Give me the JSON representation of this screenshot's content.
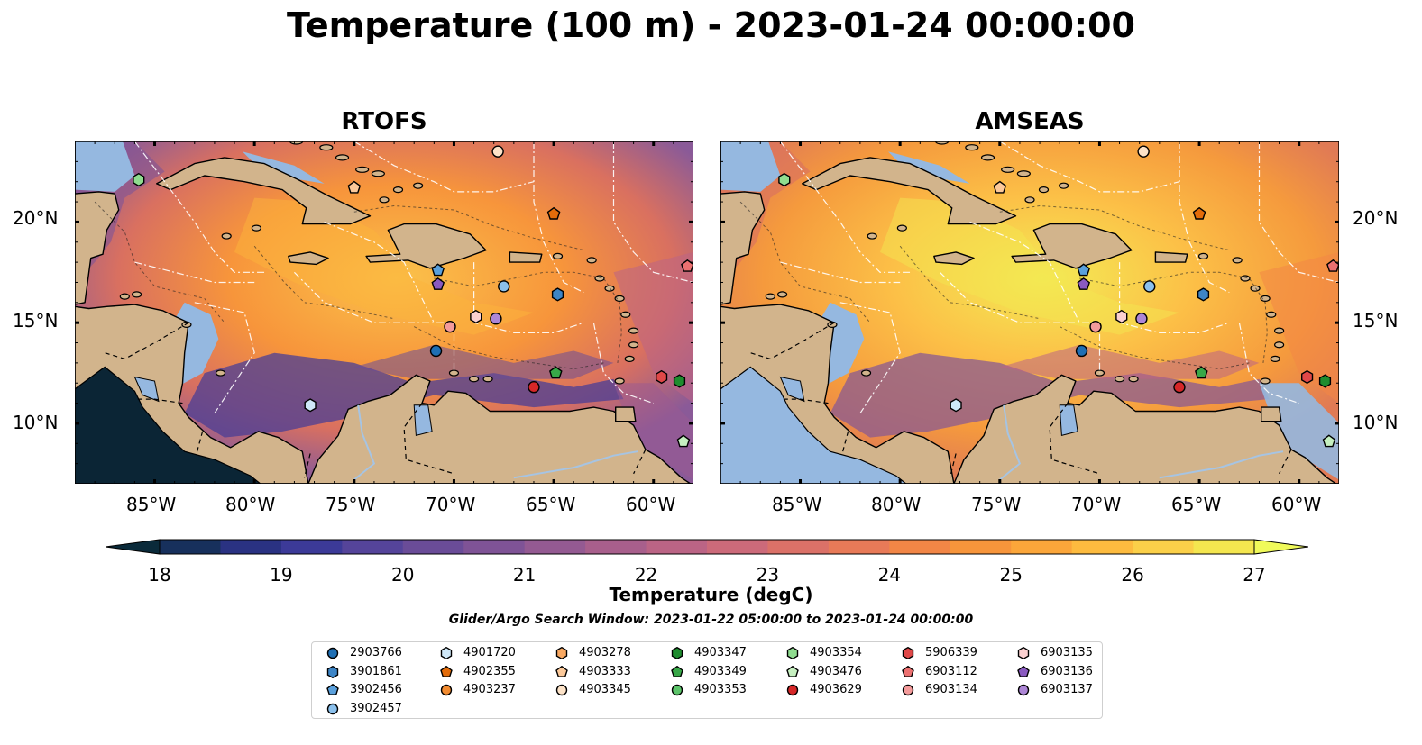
{
  "title": "Temperature (100 m) - 2023-01-24 00:00:00",
  "panels": [
    {
      "title": "RTOFS"
    },
    {
      "title": "AMSEAS"
    }
  ],
  "map": {
    "lon_ticks": [
      "85°W",
      "80°W",
      "75°W",
      "70°W",
      "65°W",
      "60°W"
    ],
    "lat_ticks": [
      "20°N",
      "15°N",
      "10°N"
    ],
    "lon_range": [
      -89,
      -58
    ],
    "lat_range": [
      7,
      24
    ],
    "colors": {
      "land": "#d2b48c",
      "ocean": "#95b8e0",
      "coast": "#000000",
      "eez": "#ffffff"
    }
  },
  "colorbar": {
    "title": "Temperature (degC)",
    "ticks": [
      "18",
      "19",
      "20",
      "21",
      "22",
      "23",
      "24",
      "25",
      "26",
      "27"
    ],
    "range": [
      18,
      27
    ],
    "colors": [
      "#0a2a3a",
      "#17305c",
      "#2a3282",
      "#3c3a98",
      "#55449a",
      "#6a4c98",
      "#7f5396",
      "#945a92",
      "#a85f8c",
      "#bb6485",
      "#cc6a7a",
      "#db7168",
      "#e87a58",
      "#f28646",
      "#f7953b",
      "#fba63a",
      "#fdbb3f",
      "#fbd049",
      "#f4e64f",
      "#f0fa5a"
    ]
  },
  "search_window": "Glider/Argo Search Window: 2023-01-22 05:00:00 to 2023-01-24 00:00:00",
  "legend": [
    {
      "label": "2903766",
      "shape": "circle",
      "color": "#1f6fb4"
    },
    {
      "label": "3901861",
      "shape": "hexagon",
      "color": "#3d85c6"
    },
    {
      "label": "3902456",
      "shape": "pentagon",
      "color": "#5aa0dc"
    },
    {
      "label": "3902457",
      "shape": "circle",
      "color": "#8bc0ec"
    },
    {
      "label": "4901720",
      "shape": "hexagon",
      "color": "#cfe8f8"
    },
    {
      "label": "4902355",
      "shape": "pentagon",
      "color": "#e36c0a"
    },
    {
      "label": "4903237",
      "shape": "circle",
      "color": "#f28b30"
    },
    {
      "label": "4903278",
      "shape": "hexagon",
      "color": "#f8a862"
    },
    {
      "label": "4903333",
      "shape": "pentagon",
      "color": "#fcc99a"
    },
    {
      "label": "4903345",
      "shape": "circle",
      "color": "#fde3c8"
    },
    {
      "label": "4903347",
      "shape": "hexagon",
      "color": "#1e8c2e"
    },
    {
      "label": "4903349",
      "shape": "pentagon",
      "color": "#38a848"
    },
    {
      "label": "4903353",
      "shape": "circle",
      "color": "#5cc46a"
    },
    {
      "label": "4903354",
      "shape": "hexagon",
      "color": "#8fdc8f"
    },
    {
      "label": "4903476",
      "shape": "pentagon",
      "color": "#c6f0c0"
    },
    {
      "label": "4903629",
      "shape": "circle",
      "color": "#d62728"
    },
    {
      "label": "5906339",
      "shape": "hexagon",
      "color": "#e04848"
    },
    {
      "label": "6903112",
      "shape": "pentagon",
      "color": "#ec7070"
    },
    {
      "label": "6903134",
      "shape": "circle",
      "color": "#f49b9b"
    },
    {
      "label": "6903135",
      "shape": "hexagon",
      "color": "#fbd0d0"
    },
    {
      "label": "6903136",
      "shape": "pentagon",
      "color": "#8a5ac0"
    },
    {
      "label": "6903137",
      "shape": "circle",
      "color": "#ad86d6"
    }
  ],
  "markers": [
    {
      "id": "4903354",
      "lon": -85.8,
      "lat": 22.1
    },
    {
      "id": "4903333",
      "lon": -75.0,
      "lat": 21.7
    },
    {
      "id": "4903345",
      "lon": -67.8,
      "lat": 23.5
    },
    {
      "id": "4902355",
      "lon": -65.0,
      "lat": 20.4
    },
    {
      "id": "3902456",
      "lon": -70.8,
      "lat": 17.6
    },
    {
      "id": "6903136",
      "lon": -70.8,
      "lat": 16.9
    },
    {
      "id": "3902457",
      "lon": -67.5,
      "lat": 16.8
    },
    {
      "id": "3901861",
      "lon": -64.8,
      "lat": 16.4
    },
    {
      "id": "6903112",
      "lon": -58.3,
      "lat": 17.8
    },
    {
      "id": "6903135",
      "lon": -68.9,
      "lat": 15.3
    },
    {
      "id": "6903137",
      "lon": -67.9,
      "lat": 15.2
    },
    {
      "id": "6903134",
      "lon": -70.2,
      "lat": 14.8
    },
    {
      "id": "2903766",
      "lon": -70.9,
      "lat": 13.6
    },
    {
      "id": "4903349",
      "lon": -64.9,
      "lat": 12.5
    },
    {
      "id": "4903629",
      "lon": -66.0,
      "lat": 11.8
    },
    {
      "id": "5906339",
      "lon": -59.6,
      "lat": 12.3
    },
    {
      "id": "4903347",
      "lon": -58.7,
      "lat": 12.1
    },
    {
      "id": "4901720",
      "lon": -77.2,
      "lat": 10.9
    },
    {
      "id": "4903476",
      "lon": -58.5,
      "lat": 9.1
    }
  ]
}
